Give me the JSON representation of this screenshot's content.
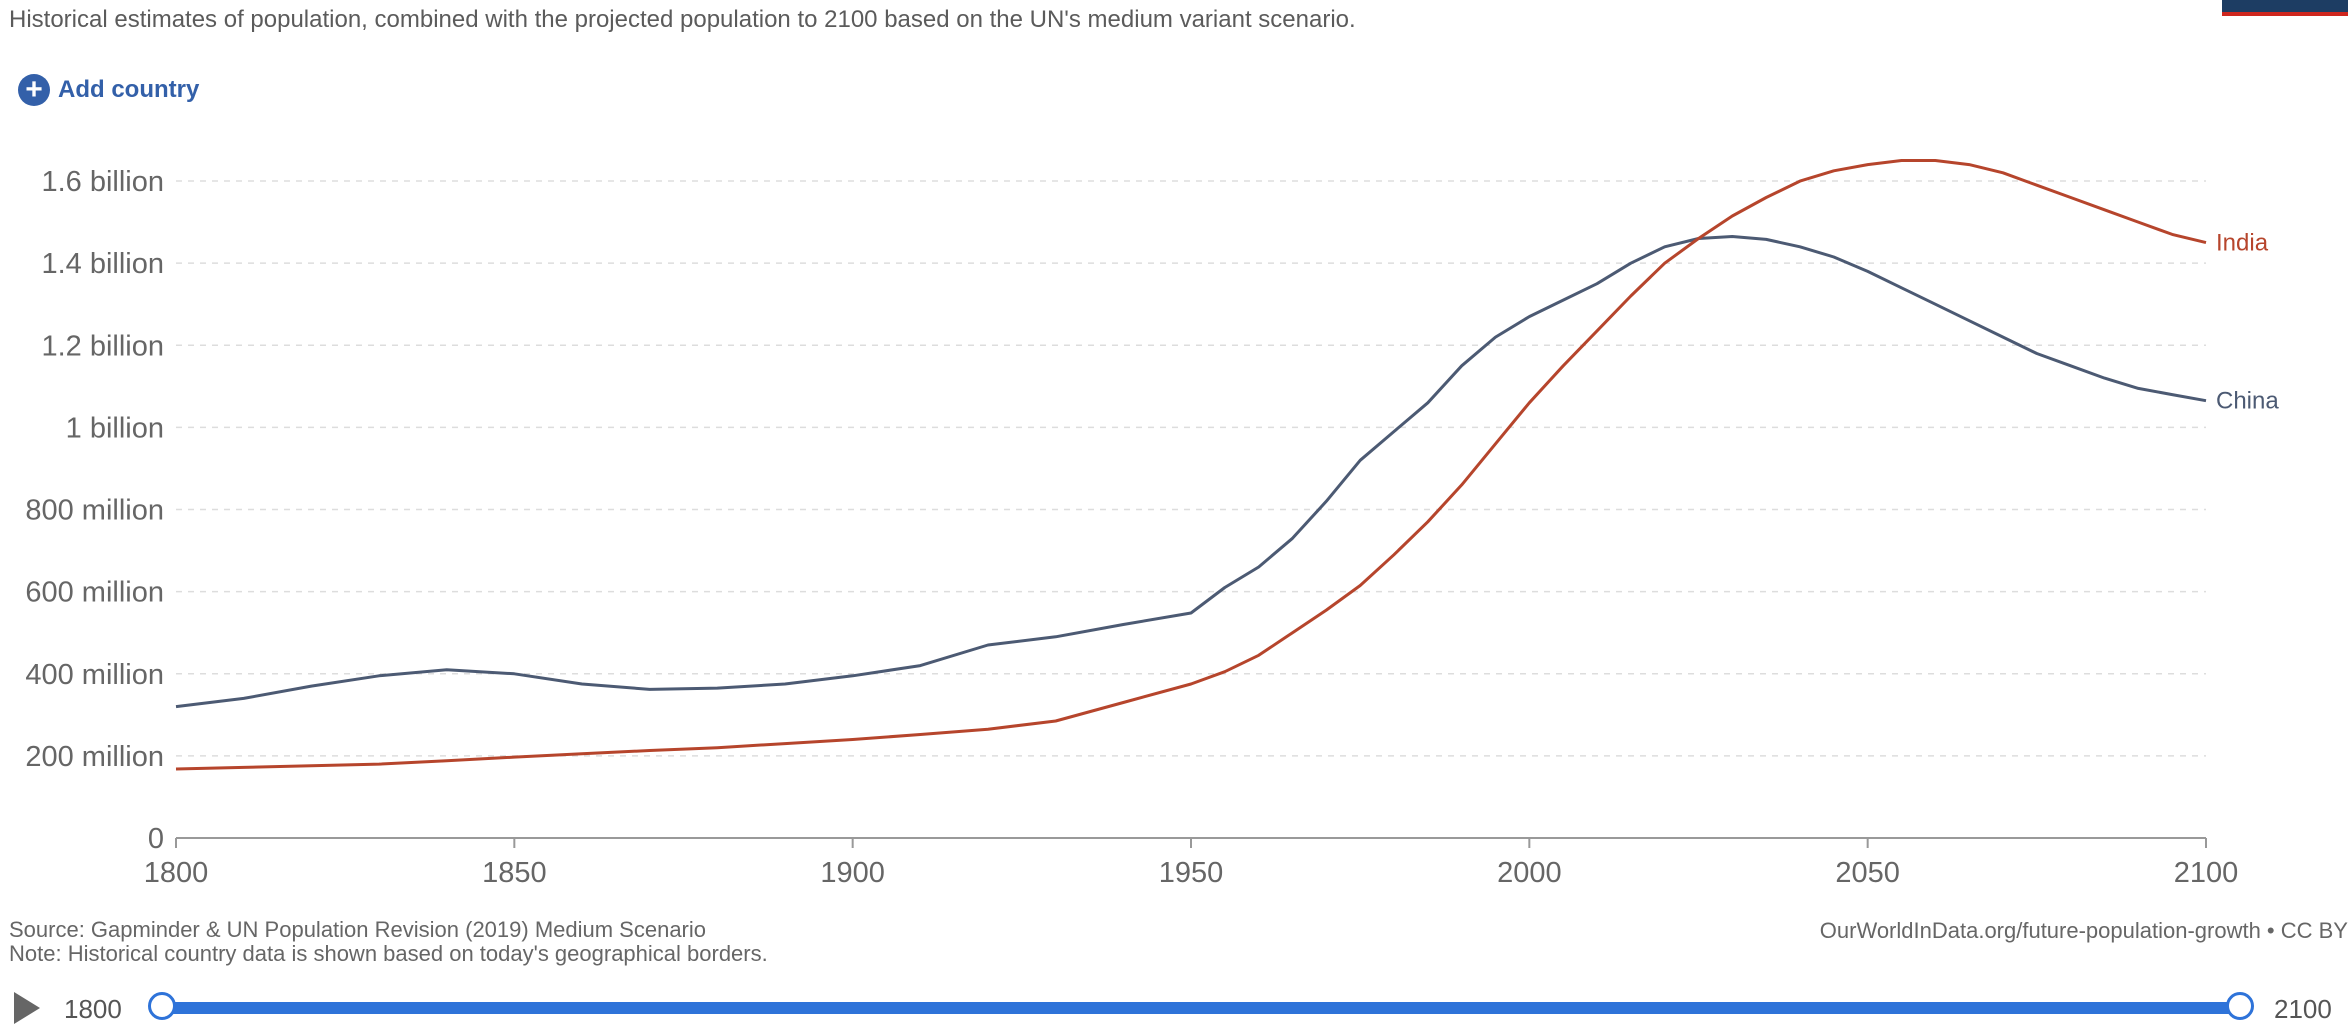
{
  "subtitle": "Historical estimates of population, combined with the projected population to 2100 based on the UN's medium variant scenario.",
  "add_country": {
    "label": "Add country",
    "icon": "plus-circle-icon"
  },
  "colors": {
    "china": "#4c5a73",
    "india": "#b6452c",
    "accent": "#3360a9",
    "timeline": "#2e73d9"
  },
  "chart_data": {
    "type": "line",
    "xlim": [
      1800,
      2100
    ],
    "ylim": [
      0,
      1700000000
    ],
    "x_ticks": [
      {
        "value": 1800,
        "label": "1800"
      },
      {
        "value": 1850,
        "label": "1850"
      },
      {
        "value": 1900,
        "label": "1900"
      },
      {
        "value": 1950,
        "label": "1950"
      },
      {
        "value": 2000,
        "label": "2000"
      },
      {
        "value": 2050,
        "label": "2050"
      },
      {
        "value": 2100,
        "label": "2100"
      }
    ],
    "y_ticks": [
      {
        "value": 0,
        "label": "0"
      },
      {
        "value": 200000000,
        "label": "200 million"
      },
      {
        "value": 400000000,
        "label": "400 million"
      },
      {
        "value": 600000000,
        "label": "600 million"
      },
      {
        "value": 800000000,
        "label": "800 million"
      },
      {
        "value": 1000000000,
        "label": "1 billion"
      },
      {
        "value": 1200000000,
        "label": "1.2 billion"
      },
      {
        "value": 1400000000,
        "label": "1.4 billion"
      },
      {
        "value": 1600000000,
        "label": "1.6 billion"
      }
    ],
    "grid": true,
    "series": [
      {
        "name": "China",
        "points": [
          [
            1800,
            320000000
          ],
          [
            1810,
            340000000
          ],
          [
            1820,
            370000000
          ],
          [
            1830,
            395000000
          ],
          [
            1840,
            410000000
          ],
          [
            1850,
            400000000
          ],
          [
            1860,
            375000000
          ],
          [
            1870,
            362000000
          ],
          [
            1880,
            365000000
          ],
          [
            1890,
            375000000
          ],
          [
            1900,
            395000000
          ],
          [
            1910,
            420000000
          ],
          [
            1920,
            470000000
          ],
          [
            1930,
            490000000
          ],
          [
            1940,
            520000000
          ],
          [
            1950,
            548000000
          ],
          [
            1955,
            610000000
          ],
          [
            1960,
            660000000
          ],
          [
            1965,
            730000000
          ],
          [
            1970,
            820000000
          ],
          [
            1975,
            920000000
          ],
          [
            1980,
            990000000
          ],
          [
            1985,
            1060000000
          ],
          [
            1990,
            1150000000
          ],
          [
            1995,
            1220000000
          ],
          [
            2000,
            1270000000
          ],
          [
            2005,
            1310000000
          ],
          [
            2010,
            1350000000
          ],
          [
            2015,
            1400000000
          ],
          [
            2020,
            1440000000
          ],
          [
            2025,
            1460000000
          ],
          [
            2030,
            1465000000
          ],
          [
            2035,
            1458000000
          ],
          [
            2040,
            1440000000
          ],
          [
            2045,
            1415000000
          ],
          [
            2050,
            1380000000
          ],
          [
            2055,
            1340000000
          ],
          [
            2060,
            1300000000
          ],
          [
            2065,
            1260000000
          ],
          [
            2070,
            1220000000
          ],
          [
            2075,
            1180000000
          ],
          [
            2080,
            1150000000
          ],
          [
            2085,
            1120000000
          ],
          [
            2090,
            1095000000
          ],
          [
            2095,
            1080000000
          ],
          [
            2100,
            1065000000
          ]
        ]
      },
      {
        "name": "India",
        "points": [
          [
            1800,
            168000000
          ],
          [
            1810,
            172000000
          ],
          [
            1820,
            176000000
          ],
          [
            1830,
            180000000
          ],
          [
            1840,
            188000000
          ],
          [
            1850,
            197000000
          ],
          [
            1860,
            205000000
          ],
          [
            1870,
            213000000
          ],
          [
            1880,
            220000000
          ],
          [
            1890,
            230000000
          ],
          [
            1900,
            240000000
          ],
          [
            1910,
            252000000
          ],
          [
            1920,
            265000000
          ],
          [
            1930,
            285000000
          ],
          [
            1940,
            330000000
          ],
          [
            1950,
            375000000
          ],
          [
            1955,
            405000000
          ],
          [
            1960,
            445000000
          ],
          [
            1965,
            500000000
          ],
          [
            1970,
            555000000
          ],
          [
            1975,
            615000000
          ],
          [
            1980,
            690000000
          ],
          [
            1985,
            770000000
          ],
          [
            1990,
            860000000
          ],
          [
            1995,
            960000000
          ],
          [
            2000,
            1060000000
          ],
          [
            2005,
            1150000000
          ],
          [
            2010,
            1235000000
          ],
          [
            2015,
            1320000000
          ],
          [
            2020,
            1400000000
          ],
          [
            2025,
            1460000000
          ],
          [
            2030,
            1515000000
          ],
          [
            2035,
            1560000000
          ],
          [
            2040,
            1600000000
          ],
          [
            2045,
            1625000000
          ],
          [
            2050,
            1640000000
          ],
          [
            2055,
            1650000000
          ],
          [
            2060,
            1650000000
          ],
          [
            2065,
            1640000000
          ],
          [
            2070,
            1620000000
          ],
          [
            2075,
            1590000000
          ],
          [
            2080,
            1560000000
          ],
          [
            2085,
            1530000000
          ],
          [
            2090,
            1500000000
          ],
          [
            2095,
            1470000000
          ],
          [
            2100,
            1450000000
          ]
        ]
      }
    ]
  },
  "source": "Source: Gapminder & UN Population Revision (2019) Medium Scenario",
  "note": "Note: Historical country data is shown based on today's geographical borders.",
  "credit": "OurWorldInData.org/future-population-growth • CC BY",
  "timeline": {
    "start_label": "1800",
    "end_label": "2100",
    "start_value": 1800,
    "end_value": 2100
  }
}
